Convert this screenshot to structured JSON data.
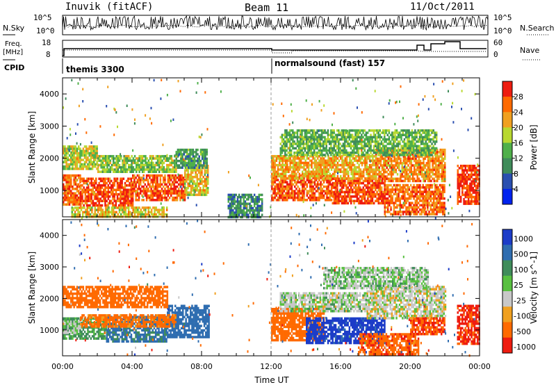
{
  "header": {
    "station": "Inuvik (fitACF)",
    "beam": "Beam 11",
    "date": "11/Oct/2011"
  },
  "top_panels": {
    "nsky": {
      "label": "N.Sky",
      "scale_top": "10^5",
      "scale_bottom": "10^0"
    },
    "nsearch": {
      "label": "N.Search",
      "scale_top": "10^5",
      "scale_bottom": "10^0"
    },
    "freq": {
      "label_line1": "Freq.",
      "label_line2": "[MHz]",
      "scale_top": "18",
      "scale_bottom": "8"
    },
    "nave": {
      "label": "Nave",
      "scale_top": "60",
      "scale_bottom": "0"
    },
    "cpid": {
      "label": "CPID",
      "segments": [
        {
          "name": "themis 3300",
          "start_hour": 0
        },
        {
          "name": "normalsound (fast) 157",
          "start_hour": 12
        }
      ]
    }
  },
  "chart_data": [
    {
      "type": "heatmap",
      "title": "",
      "xlabel": "",
      "ylabel": "Slant Range [km]",
      "x_range_hours": [
        0,
        24
      ],
      "ylim": [
        180,
        4500
      ],
      "yticks": [
        1000,
        2000,
        3000,
        4000
      ],
      "colorbar": {
        "label": "Power [dB]",
        "range": [
          0,
          32
        ],
        "ticks": [
          4,
          8,
          12,
          16,
          20,
          24,
          28
        ],
        "colors": [
          "#0022ee",
          "#2a4fb0",
          "#3f8c5a",
          "#4fb04a",
          "#b8d830",
          "#f0a020",
          "#ff6a00",
          "#ee1c10"
        ]
      },
      "regions": [
        {
          "t0": 0.0,
          "t1": 1.0,
          "r0": 600,
          "r1": 1500,
          "value": 26
        },
        {
          "t0": 1.0,
          "t1": 4.0,
          "r0": 550,
          "r1": 1400,
          "value": 28
        },
        {
          "t0": 4.0,
          "t1": 7.0,
          "r0": 700,
          "r1": 1500,
          "value": 27
        },
        {
          "t0": 7.0,
          "t1": 8.4,
          "r0": 900,
          "r1": 1800,
          "value": 20
        },
        {
          "t0": 0.0,
          "t1": 2.0,
          "r0": 1700,
          "r1": 2400,
          "value": 18
        },
        {
          "t0": 2.0,
          "t1": 6.5,
          "r0": 1550,
          "r1": 2100,
          "value": 16
        },
        {
          "t0": 6.5,
          "t1": 8.3,
          "r0": 1700,
          "r1": 2300,
          "value": 12
        },
        {
          "t0": 0.5,
          "t1": 6.0,
          "r0": 200,
          "r1": 500,
          "value": 20
        },
        {
          "t0": 9.5,
          "t1": 11.5,
          "r0": 200,
          "r1": 900,
          "value": 10
        },
        {
          "t0": 12.0,
          "t1": 15.5,
          "r0": 700,
          "r1": 1500,
          "value": 27
        },
        {
          "t0": 15.5,
          "t1": 18.5,
          "r0": 600,
          "r1": 1400,
          "value": 28
        },
        {
          "t0": 18.5,
          "t1": 22.0,
          "r0": 300,
          "r1": 1200,
          "value": 26
        },
        {
          "t0": 12.0,
          "t1": 18.0,
          "r0": 1400,
          "r1": 2100,
          "value": 22
        },
        {
          "t0": 18.0,
          "t1": 22.0,
          "r0": 1300,
          "r1": 2300,
          "value": 24
        },
        {
          "t0": 12.5,
          "t1": 21.5,
          "r0": 2100,
          "r1": 2900,
          "value": 14
        },
        {
          "t0": 22.7,
          "t1": 24.0,
          "r0": 600,
          "r1": 1800,
          "value": 29
        }
      ]
    },
    {
      "type": "heatmap",
      "title": "",
      "xlabel": "Time UT",
      "ylabel": "Slant Range [km]",
      "x_range_hours": [
        0,
        24
      ],
      "ylim": [
        180,
        4500
      ],
      "yticks": [
        1000,
        2000,
        3000,
        4000
      ],
      "xtick_labels": [
        "00:00",
        "04:00",
        "08:00",
        "12:00",
        "16:00",
        "20:00",
        "00:00"
      ],
      "colorbar": {
        "label": "Velocity [m s^-1]",
        "tick_labels": [
          "1000",
          "500",
          "100",
          "25",
          "-25",
          "-100",
          "-500",
          "-1000"
        ],
        "colors": [
          "#1c3cc8",
          "#2f6db0",
          "#3f8c5a",
          "#58c040",
          "#c8c8c8",
          "#f0a020",
          "#ff6a00",
          "#ee1c10"
        ]
      },
      "regions": [
        {
          "t0": 0.0,
          "t1": 2.5,
          "r0": 700,
          "r1": 1400,
          "value": 40
        },
        {
          "t0": 2.5,
          "t1": 6.0,
          "r0": 650,
          "r1": 1450,
          "value": 120
        },
        {
          "t0": 6.0,
          "t1": 8.4,
          "r0": 800,
          "r1": 1800,
          "value": 300
        },
        {
          "t0": 0.0,
          "t1": 1.0,
          "r0": 900,
          "r1": 1300,
          "value": 0
        },
        {
          "t0": 1.0,
          "t1": 6.5,
          "r0": 1100,
          "r1": 1500,
          "value": -150
        },
        {
          "t0": 0.0,
          "t1": 6.0,
          "r0": 1700,
          "r1": 2400,
          "value": -300
        },
        {
          "t0": 12.0,
          "t1": 15.0,
          "r0": 700,
          "r1": 1700,
          "value": -300
        },
        {
          "t0": 14.0,
          "t1": 18.5,
          "r0": 600,
          "r1": 1400,
          "value": 800
        },
        {
          "t0": 17.0,
          "t1": 20.5,
          "r0": 250,
          "r1": 900,
          "value": -400
        },
        {
          "t0": 12.5,
          "t1": 17.5,
          "r0": 1600,
          "r1": 2200,
          "value": 0
        },
        {
          "t0": 17.5,
          "t1": 22.0,
          "r0": 1400,
          "r1": 2400,
          "value": -10
        },
        {
          "t0": 15.0,
          "t1": 21.0,
          "r0": 2300,
          "r1": 3000,
          "value": 5
        },
        {
          "t0": 20.0,
          "t1": 22.0,
          "r0": 900,
          "r1": 1400,
          "value": -500
        },
        {
          "t0": 22.7,
          "t1": 24.0,
          "r0": 600,
          "r1": 1800,
          "value": -700
        }
      ]
    }
  ]
}
